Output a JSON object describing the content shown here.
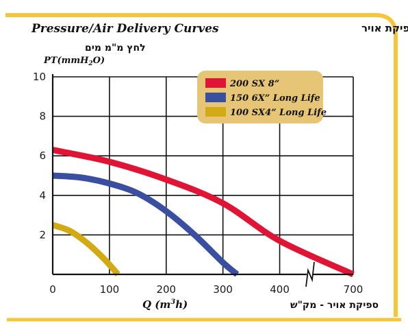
{
  "title_en": "Pressure/Air Delivery Curves",
  "title_he": "עקומת לחץ / ספיקת אויר",
  "y_label_he": "לחץ מ\"מ מים",
  "y_label_en_prefix": "PT(mmH",
  "y_label_en_sub": "2",
  "y_label_en_suffix": "O)",
  "x_label_en_prefix": "Q (m",
  "x_label_en_sup": "3",
  "x_label_en_suffix": "h)",
  "x_label_he": "ספיקת אויר - מק\"ש",
  "colors": {
    "frame": "#f6c53a",
    "legend_bg": "#e7c576",
    "axis": "#111111",
    "series_200": "#e01536",
    "series_150": "#3a4fa0",
    "series_100": "#d4aa14"
  },
  "chart_data": {
    "type": "line",
    "xlim": [
      0,
      700
    ],
    "ylim": [
      0,
      10
    ],
    "x_ticks": [
      0,
      100,
      200,
      300,
      400,
      700
    ],
    "y_ticks": [
      2,
      4,
      6,
      8,
      10
    ],
    "x_axis_break_between": [
      450,
      650
    ],
    "grid": true,
    "legend_position": "top-right",
    "series": [
      {
        "name": "200 SX 8”",
        "color": "#e01536",
        "x": [
          0,
          100,
          200,
          300,
          400,
          700
        ],
        "y": [
          6.3,
          5.7,
          4.8,
          3.6,
          1.7,
          0
        ]
      },
      {
        "name": "150 6X” Long Life",
        "color": "#3a4fa0",
        "x": [
          0,
          50,
          100,
          150,
          200,
          250,
          300,
          325
        ],
        "y": [
          5.0,
          4.9,
          4.6,
          4.1,
          3.2,
          2.0,
          0.6,
          0
        ]
      },
      {
        "name": "100 SX4” Long Life",
        "color": "#d4aa14",
        "x": [
          0,
          30,
          60,
          90,
          115
        ],
        "y": [
          2.5,
          2.2,
          1.6,
          0.8,
          0
        ]
      }
    ]
  }
}
